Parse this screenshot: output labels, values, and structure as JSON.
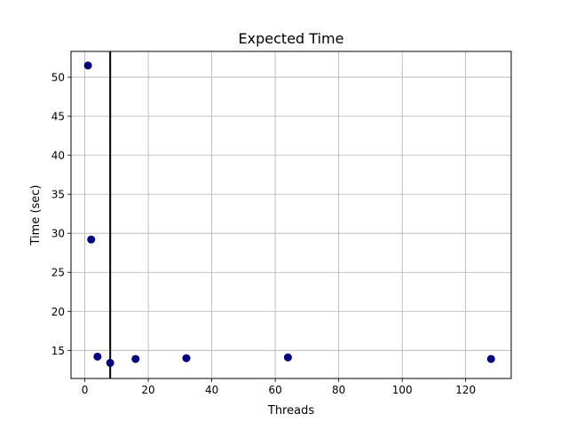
{
  "chart_data": {
    "type": "scatter",
    "title": "Expected Time",
    "xlabel": "Threads",
    "ylabel": "Time (sec)",
    "xlim": [
      -4.35,
      134.35
    ],
    "ylim": [
      11.4,
      53.3
    ],
    "xticks": [
      0,
      20,
      40,
      60,
      80,
      100,
      120
    ],
    "yticks": [
      15,
      20,
      25,
      30,
      35,
      40,
      45,
      50
    ],
    "grid": true,
    "marker_color": "#000080",
    "vertical_line": {
      "x": 8,
      "color": "#000000"
    },
    "points": [
      {
        "x": 1,
        "y": 51.5
      },
      {
        "x": 2,
        "y": 29.2
      },
      {
        "x": 4,
        "y": 14.2
      },
      {
        "x": 8,
        "y": 13.4
      },
      {
        "x": 16,
        "y": 13.9
      },
      {
        "x": 32,
        "y": 14.0
      },
      {
        "x": 64,
        "y": 14.1
      },
      {
        "x": 128,
        "y": 13.9
      }
    ]
  }
}
